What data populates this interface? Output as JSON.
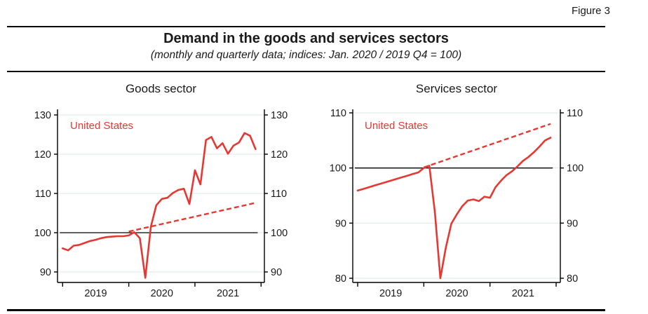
{
  "figure_label": "Figure 3",
  "title": "Demand in the goods and services sectors",
  "subtitle": "(monthly and quarterly data; indices: Jan. 2020 / 2019 Q4 = 100)",
  "colors": {
    "series_red": "#e63832",
    "grid": "#dde8ea",
    "axis": "#000000",
    "reference_line": "#000000"
  },
  "chart_data": [
    {
      "type": "line",
      "title": "Goods sector",
      "series_label": "United States",
      "x_monthly_start": "2019-01",
      "x_tick_years": [
        "2019",
        "2020",
        "2021"
      ],
      "yticks": [
        130,
        120,
        110,
        100,
        90
      ],
      "ylim": [
        87,
        131.5
      ],
      "reference_value": 100,
      "solid_series": [
        96.0,
        95.5,
        96.7,
        96.9,
        97.4,
        97.9,
        98.2,
        98.6,
        98.9,
        99.0,
        99.1,
        99.1,
        99.3,
        100.1,
        98.6,
        88.5,
        101.5,
        107.0,
        108.6,
        108.9,
        110.1,
        110.9,
        111.2,
        107.3,
        115.9,
        112.3,
        123.6,
        124.4,
        121.5,
        122.8,
        120.1,
        122.2,
        123.0,
        125.4,
        124.7,
        121.3
      ],
      "dashed_trend": {
        "from_index": 12,
        "from_value": 100.3,
        "to_index": 35,
        "to_value": 107.6
      }
    },
    {
      "type": "line",
      "title": "Services sector",
      "series_label": "United States",
      "x_monthly_start": "2019-01",
      "x_tick_years": [
        "2019",
        "2020",
        "2021"
      ],
      "yticks": [
        110,
        100,
        90,
        80
      ],
      "ylim": [
        79,
        111.5
      ],
      "reference_value": 100,
      "solid_series": [
        95.9,
        96.2,
        96.5,
        96.8,
        97.1,
        97.4,
        97.7,
        98.0,
        98.3,
        98.6,
        98.9,
        99.2,
        100.0,
        100.4,
        92.0,
        80.0,
        85.6,
        89.9,
        91.6,
        93.1,
        94.1,
        94.3,
        94.0,
        94.8,
        94.6,
        96.5,
        97.7,
        98.7,
        99.4,
        100.3,
        101.3,
        102.0,
        102.9,
        103.9,
        105.0,
        105.5
      ],
      "dashed_trend": {
        "from_index": 12,
        "from_value": 100.1,
        "to_index": 35,
        "to_value": 108.0
      }
    }
  ]
}
